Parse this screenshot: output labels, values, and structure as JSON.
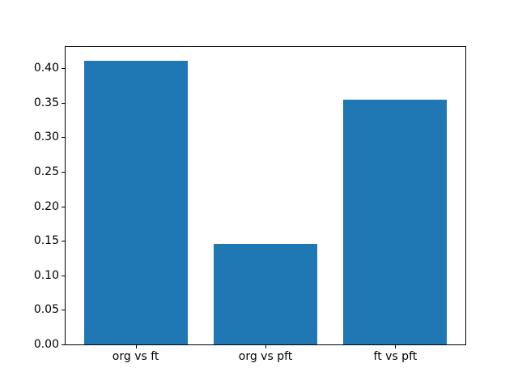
{
  "chart_data": {
    "type": "bar",
    "categories": [
      "org vs ft",
      "org vs pft",
      "ft vs pft"
    ],
    "values": [
      0.411,
      0.146,
      0.354
    ],
    "title": "",
    "xlabel": "",
    "ylabel": "",
    "ylim": [
      0,
      0.4316
    ],
    "yticks": [
      "0.00",
      "0.05",
      "0.10",
      "0.15",
      "0.20",
      "0.25",
      "0.30",
      "0.35",
      "0.40"
    ],
    "bar_color": "#1f77b4",
    "spine_color": "#000000",
    "background_color": "#ffffff",
    "grid": false,
    "legend": null
  }
}
